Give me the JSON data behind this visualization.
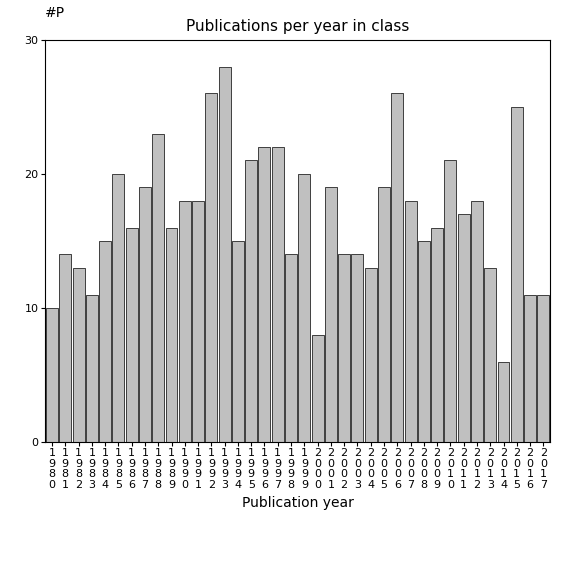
{
  "title": "Publications per year in class",
  "xlabel": "Publication year",
  "ylabel": "#P",
  "years": [
    "1980",
    "1981",
    "1982",
    "1983",
    "1984",
    "1985",
    "1986",
    "1987",
    "1988",
    "1989",
    "1990",
    "1991",
    "1992",
    "1993",
    "1994",
    "1995",
    "1996",
    "1997",
    "1998",
    "1999",
    "2000",
    "2001",
    "2002",
    "2003",
    "2004",
    "2005",
    "2006",
    "2007",
    "2008",
    "2009",
    "2010",
    "2011",
    "2012",
    "2013",
    "2014",
    "2015",
    "2016",
    "2017"
  ],
  "values": [
    10,
    14,
    13,
    11,
    15,
    20,
    16,
    19,
    23,
    16,
    18,
    18,
    26,
    28,
    15,
    21,
    22,
    22,
    14,
    20,
    8,
    19,
    14,
    14,
    13,
    19,
    26,
    18,
    15,
    16,
    21,
    17,
    18,
    13,
    6,
    25,
    11,
    11
  ],
  "bar_color": "#c0c0c0",
  "bar_edgecolor": "#000000",
  "ylim": [
    0,
    30
  ],
  "yticks": [
    0,
    10,
    20,
    30
  ],
  "bg_color": "#ffffff",
  "title_fontsize": 11,
  "axis_label_fontsize": 10,
  "tick_label_fontsize": 8
}
